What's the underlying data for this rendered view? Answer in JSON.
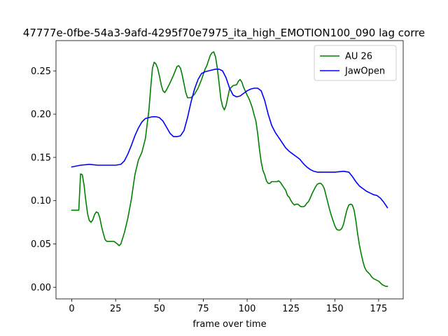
{
  "chart_data": {
    "type": "line",
    "title": "47777e-0fbe-54a3-9afd-4295f70e7975_ita_high_EMOTION100_090  lag corre",
    "xlabel": "frame over time",
    "ylabel": "",
    "xlim": [
      -9,
      189
    ],
    "ylim": [
      -0.0135,
      0.285
    ],
    "x_ticks": [
      0,
      25,
      50,
      75,
      100,
      125,
      150,
      175
    ],
    "x_tick_labels": [
      "0",
      "25",
      "50",
      "75",
      "100",
      "125",
      "150",
      "175"
    ],
    "y_ticks": [
      0.0,
      0.05,
      0.1,
      0.15,
      0.2,
      0.25
    ],
    "y_tick_labels": [
      "0.00",
      "0.05",
      "0.10",
      "0.15",
      "0.20",
      "0.25"
    ],
    "grid": false,
    "legend_position": "top-right",
    "series": [
      {
        "name": "AU 26",
        "color": "#008000",
        "points": [
          [
            0,
            0.089
          ],
          [
            4,
            0.089
          ],
          [
            5,
            0.131
          ],
          [
            6,
            0.13
          ],
          [
            7,
            0.118
          ],
          [
            8,
            0.1
          ],
          [
            9,
            0.085
          ],
          [
            10,
            0.077
          ],
          [
            11,
            0.075
          ],
          [
            12,
            0.078
          ],
          [
            13,
            0.084
          ],
          [
            14,
            0.087
          ],
          [
            15,
            0.086
          ],
          [
            16,
            0.08
          ],
          [
            17,
            0.07
          ],
          [
            18,
            0.062
          ],
          [
            19,
            0.055
          ],
          [
            20,
            0.053
          ],
          [
            22,
            0.053
          ],
          [
            24,
            0.053
          ],
          [
            26,
            0.05
          ],
          [
            27,
            0.048
          ],
          [
            28,
            0.05
          ],
          [
            30,
            0.063
          ],
          [
            32,
            0.08
          ],
          [
            34,
            0.102
          ],
          [
            36,
            0.13
          ],
          [
            38,
            0.147
          ],
          [
            40,
            0.156
          ],
          [
            42,
            0.172
          ],
          [
            44,
            0.205
          ],
          [
            45,
            0.23
          ],
          [
            46,
            0.253
          ],
          [
            47,
            0.26
          ],
          [
            48,
            0.258
          ],
          [
            49,
            0.253
          ],
          [
            50,
            0.244
          ],
          [
            51,
            0.234
          ],
          [
            52,
            0.227
          ],
          [
            53,
            0.225
          ],
          [
            54,
            0.228
          ],
          [
            56,
            0.236
          ],
          [
            58,
            0.245
          ],
          [
            59,
            0.25
          ],
          [
            60,
            0.255
          ],
          [
            61,
            0.256
          ],
          [
            62,
            0.253
          ],
          [
            63,
            0.245
          ],
          [
            64,
            0.235
          ],
          [
            65,
            0.225
          ],
          [
            66,
            0.219
          ],
          [
            68,
            0.219
          ],
          [
            70,
            0.223
          ],
          [
            72,
            0.23
          ],
          [
            74,
            0.24
          ],
          [
            76,
            0.252
          ],
          [
            77,
            0.256
          ],
          [
            78,
            0.262
          ],
          [
            79,
            0.268
          ],
          [
            80,
            0.271
          ],
          [
            81,
            0.272
          ],
          [
            82,
            0.266
          ],
          [
            83,
            0.253
          ],
          [
            84,
            0.236
          ],
          [
            85,
            0.218
          ],
          [
            86,
            0.209
          ],
          [
            87,
            0.205
          ],
          [
            88,
            0.21
          ],
          [
            89,
            0.22
          ],
          [
            90,
            0.229
          ],
          [
            92,
            0.233
          ],
          [
            94,
            0.234
          ],
          [
            95,
            0.238
          ],
          [
            96,
            0.24
          ],
          [
            97,
            0.237
          ],
          [
            98,
            0.231
          ],
          [
            100,
            0.222
          ],
          [
            101,
            0.218
          ],
          [
            102,
            0.213
          ],
          [
            103,
            0.207
          ],
          [
            104,
            0.199
          ],
          [
            105,
            0.192
          ],
          [
            106,
            0.178
          ],
          [
            107,
            0.16
          ],
          [
            108,
            0.145
          ],
          [
            109,
            0.135
          ],
          [
            110,
            0.13
          ],
          [
            111,
            0.123
          ],
          [
            112,
            0.12
          ],
          [
            113,
            0.12
          ],
          [
            114,
            0.122
          ],
          [
            115,
            0.122
          ],
          [
            116,
            0.122
          ],
          [
            117,
            0.122
          ],
          [
            118,
            0.123
          ],
          [
            119,
            0.121
          ],
          [
            120,
            0.118
          ],
          [
            121,
            0.115
          ],
          [
            122,
            0.112
          ],
          [
            123,
            0.106
          ],
          [
            124,
            0.104
          ],
          [
            125,
            0.1
          ],
          [
            126,
            0.097
          ],
          [
            127,
            0.095
          ],
          [
            128,
            0.096
          ],
          [
            129,
            0.096
          ],
          [
            130,
            0.094
          ],
          [
            131,
            0.093
          ],
          [
            132,
            0.093
          ],
          [
            133,
            0.094
          ],
          [
            134,
            0.097
          ],
          [
            135,
            0.099
          ],
          [
            136,
            0.103
          ],
          [
            137,
            0.108
          ],
          [
            138,
            0.112
          ],
          [
            139,
            0.116
          ],
          [
            140,
            0.119
          ],
          [
            141,
            0.12
          ],
          [
            142,
            0.12
          ],
          [
            143,
            0.118
          ],
          [
            144,
            0.114
          ],
          [
            145,
            0.106
          ],
          [
            146,
            0.098
          ],
          [
            147,
            0.09
          ],
          [
            148,
            0.083
          ],
          [
            149,
            0.077
          ],
          [
            150,
            0.071
          ],
          [
            151,
            0.067
          ],
          [
            152,
            0.066
          ],
          [
            153,
            0.066
          ],
          [
            154,
            0.068
          ],
          [
            155,
            0.073
          ],
          [
            156,
            0.082
          ],
          [
            157,
            0.09
          ],
          [
            158,
            0.095
          ],
          [
            159,
            0.096
          ],
          [
            160,
            0.095
          ],
          [
            161,
            0.089
          ],
          [
            162,
            0.077
          ],
          [
            163,
            0.062
          ],
          [
            164,
            0.049
          ],
          [
            165,
            0.039
          ],
          [
            166,
            0.03
          ],
          [
            167,
            0.023
          ],
          [
            168,
            0.019
          ],
          [
            169,
            0.017
          ],
          [
            170,
            0.015
          ],
          [
            171,
            0.012
          ],
          [
            172,
            0.01
          ],
          [
            173,
            0.009
          ],
          [
            174,
            0.008
          ],
          [
            175,
            0.007
          ],
          [
            176,
            0.005
          ],
          [
            177,
            0.003
          ],
          [
            178,
            0.002
          ],
          [
            179,
            0.001
          ],
          [
            180,
            0.001
          ]
        ]
      },
      {
        "name": "JawOpen",
        "color": "#0000ff",
        "points": [
          [
            0,
            0.139
          ],
          [
            5,
            0.141
          ],
          [
            10,
            0.142
          ],
          [
            15,
            0.141
          ],
          [
            20,
            0.141
          ],
          [
            25,
            0.141
          ],
          [
            28,
            0.142
          ],
          [
            30,
            0.146
          ],
          [
            32,
            0.154
          ],
          [
            34,
            0.164
          ],
          [
            36,
            0.175
          ],
          [
            38,
            0.184
          ],
          [
            40,
            0.191
          ],
          [
            42,
            0.195
          ],
          [
            44,
            0.196
          ],
          [
            46,
            0.197
          ],
          [
            48,
            0.197
          ],
          [
            50,
            0.196
          ],
          [
            52,
            0.192
          ],
          [
            54,
            0.185
          ],
          [
            56,
            0.178
          ],
          [
            58,
            0.174
          ],
          [
            60,
            0.174
          ],
          [
            62,
            0.175
          ],
          [
            64,
            0.181
          ],
          [
            66,
            0.196
          ],
          [
            68,
            0.214
          ],
          [
            70,
            0.229
          ],
          [
            72,
            0.24
          ],
          [
            74,
            0.247
          ],
          [
            76,
            0.249
          ],
          [
            78,
            0.25
          ],
          [
            80,
            0.251
          ],
          [
            82,
            0.252
          ],
          [
            84,
            0.252
          ],
          [
            86,
            0.25
          ],
          [
            88,
            0.242
          ],
          [
            90,
            0.23
          ],
          [
            92,
            0.222
          ],
          [
            94,
            0.22
          ],
          [
            96,
            0.221
          ],
          [
            98,
            0.224
          ],
          [
            100,
            0.227
          ],
          [
            102,
            0.229
          ],
          [
            104,
            0.23
          ],
          [
            106,
            0.23
          ],
          [
            108,
            0.227
          ],
          [
            110,
            0.216
          ],
          [
            112,
            0.2
          ],
          [
            114,
            0.187
          ],
          [
            116,
            0.179
          ],
          [
            118,
            0.173
          ],
          [
            120,
            0.167
          ],
          [
            122,
            0.161
          ],
          [
            124,
            0.157
          ],
          [
            126,
            0.154
          ],
          [
            128,
            0.151
          ],
          [
            130,
            0.148
          ],
          [
            132,
            0.143
          ],
          [
            134,
            0.139
          ],
          [
            136,
            0.136
          ],
          [
            138,
            0.134
          ],
          [
            140,
            0.133
          ],
          [
            145,
            0.133
          ],
          [
            150,
            0.133
          ],
          [
            155,
            0.134
          ],
          [
            158,
            0.133
          ],
          [
            160,
            0.128
          ],
          [
            162,
            0.122
          ],
          [
            164,
            0.117
          ],
          [
            166,
            0.114
          ],
          [
            168,
            0.111
          ],
          [
            170,
            0.109
          ],
          [
            172,
            0.107
          ],
          [
            174,
            0.106
          ],
          [
            176,
            0.103
          ],
          [
            178,
            0.098
          ],
          [
            180,
            0.092
          ]
        ]
      }
    ]
  }
}
